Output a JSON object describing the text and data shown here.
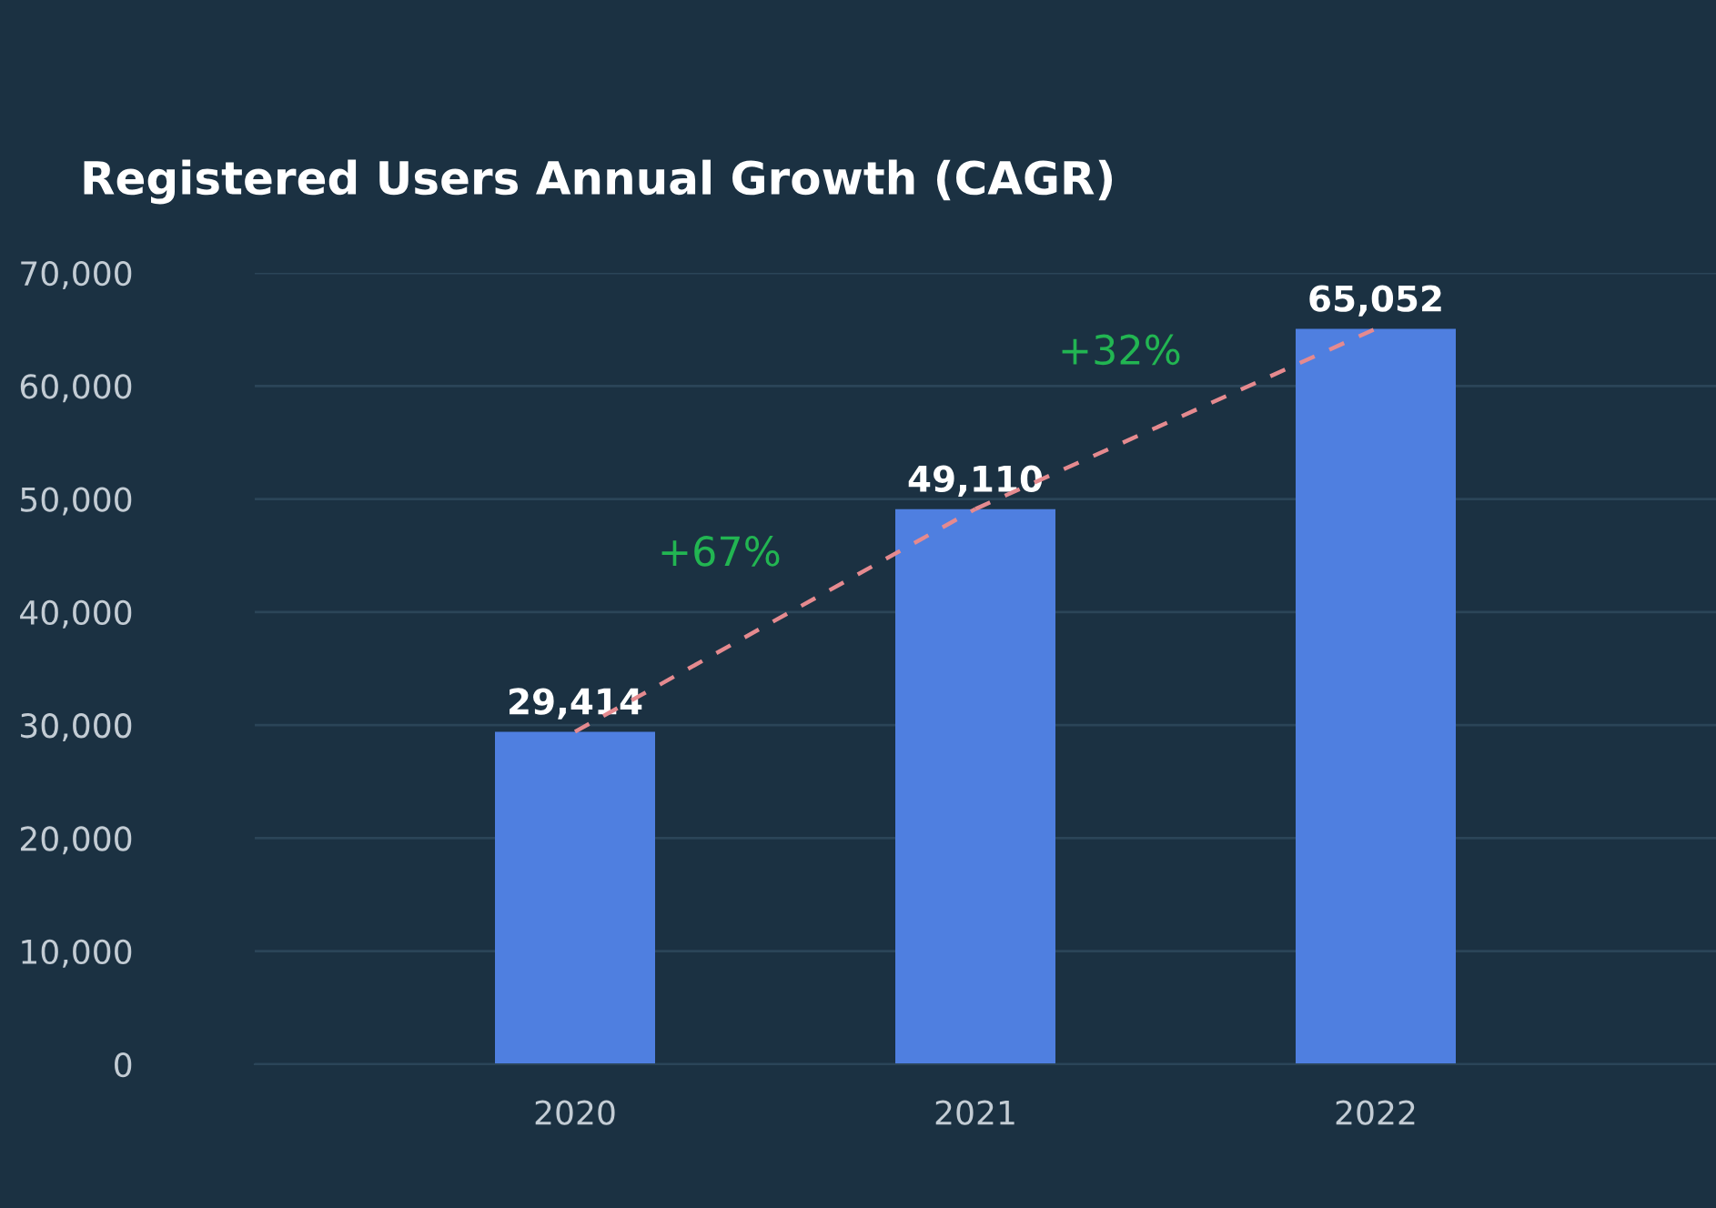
{
  "chart_data": {
    "type": "bar",
    "title": "Registered Users Annual Growth (CAGR)",
    "categories": [
      "2020",
      "2021",
      "2022"
    ],
    "series": [
      {
        "color": "#4f7fe0",
        "values": [
          29414,
          49110,
          65052
        ]
      },
      {
        "type": "line",
        "color": "#e58a8f",
        "line_style": "dashed",
        "marker": "none",
        "values": [
          29414,
          49110,
          65052
        ]
      }
    ],
    "value_labels": [
      "29,414",
      "49,110",
      "65,052"
    ],
    "annotations": [
      "+67%",
      "+32%"
    ],
    "ylim": [
      0,
      70000
    ],
    "yticks": [
      {
        "value": 0,
        "label": "0"
      },
      {
        "value": 10000,
        "label": "10,000"
      },
      {
        "value": 20000,
        "label": "20,000"
      },
      {
        "value": 30000,
        "label": "30,000"
      },
      {
        "value": 40000,
        "label": "40,000"
      },
      {
        "value": 50000,
        "label": "50,000"
      },
      {
        "value": 60000,
        "label": "60,000"
      },
      {
        "value": 70000,
        "label": "70,000"
      }
    ],
    "grid": "y",
    "legend": false
  }
}
